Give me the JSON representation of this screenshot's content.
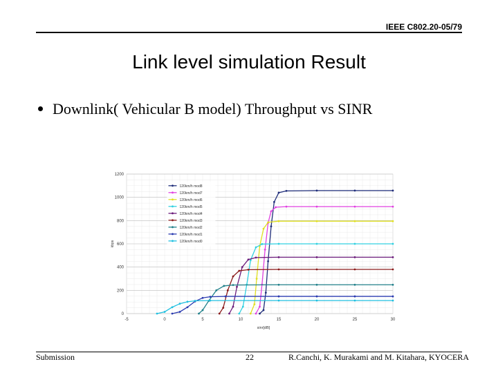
{
  "header": {
    "doc_id": "IEEE C802.20-05/79"
  },
  "slide": {
    "title": "Link level simulation Result",
    "bullet": "Downlink( Vehicular B model) Throughput vs SINR"
  },
  "footer": {
    "left": "Submission",
    "page_number": "22",
    "right": "R.Canchi, K. Murakami and M. Kitahara, KYOCERA"
  },
  "chart_data": {
    "type": "line",
    "title": "",
    "xlabel": "sinr[dB]",
    "ylabel": "kbps",
    "xlim": [
      -5,
      30
    ],
    "ylim": [
      0,
      1200
    ],
    "x_ticks": [
      "-5",
      "0",
      "5",
      "10",
      "15",
      "20",
      "25",
      "30"
    ],
    "y_ticks": [
      "0",
      "200",
      "400",
      "600",
      "800",
      "1000",
      "1200"
    ],
    "grid": true,
    "legend_position": "top-left",
    "series": [
      {
        "name": "120km/h mod8",
        "color": "#1f2d7a",
        "points": [
          [
            12.5,
            0
          ],
          [
            13,
            30
          ],
          [
            13.3,
            180
          ],
          [
            13.6,
            450
          ],
          [
            14,
            750
          ],
          [
            14.4,
            960
          ],
          [
            15,
            1040
          ],
          [
            16,
            1055
          ],
          [
            20,
            1058
          ],
          [
            25,
            1058
          ],
          [
            30,
            1058
          ]
        ]
      },
      {
        "name": "120km/h mod7",
        "color": "#e040e0",
        "points": [
          [
            12,
            0
          ],
          [
            12.5,
            60
          ],
          [
            12.8,
            250
          ],
          [
            13.2,
            550
          ],
          [
            13.6,
            780
          ],
          [
            14,
            880
          ],
          [
            14.6,
            915
          ],
          [
            16,
            920
          ],
          [
            20,
            920
          ],
          [
            25,
            920
          ],
          [
            30,
            920
          ]
        ]
      },
      {
        "name": "120km/h mod6",
        "color": "#e0e020",
        "points": [
          [
            11.3,
            0
          ],
          [
            11.8,
            80
          ],
          [
            12.1,
            300
          ],
          [
            12.5,
            580
          ],
          [
            13,
            730
          ],
          [
            13.6,
            785
          ],
          [
            15,
            795
          ],
          [
            20,
            795
          ],
          [
            25,
            795
          ],
          [
            30,
            795
          ]
        ]
      },
      {
        "name": "120km/h mod5",
        "color": "#30d0e0",
        "points": [
          [
            9.8,
            0
          ],
          [
            10.3,
            60
          ],
          [
            10.8,
            250
          ],
          [
            11.3,
            460
          ],
          [
            12,
            570
          ],
          [
            12.8,
            598
          ],
          [
            15,
            600
          ],
          [
            20,
            600
          ],
          [
            25,
            600
          ],
          [
            30,
            600
          ]
        ]
      },
      {
        "name": "120km/h mod4",
        "color": "#6a1a7a",
        "points": [
          [
            8.5,
            0
          ],
          [
            9,
            60
          ],
          [
            9.5,
            230
          ],
          [
            10.2,
            400
          ],
          [
            11,
            465
          ],
          [
            12,
            482
          ],
          [
            15,
            485
          ],
          [
            20,
            485
          ],
          [
            25,
            485
          ],
          [
            30,
            485
          ]
        ]
      },
      {
        "name": "120km/h mod3",
        "color": "#8a1a1a",
        "points": [
          [
            7.2,
            0
          ],
          [
            7.7,
            50
          ],
          [
            8.3,
            200
          ],
          [
            9,
            320
          ],
          [
            9.8,
            368
          ],
          [
            11,
            378
          ],
          [
            15,
            380
          ],
          [
            20,
            380
          ],
          [
            25,
            380
          ],
          [
            30,
            380
          ]
        ]
      },
      {
        "name": "120km/h mod2",
        "color": "#20808a",
        "points": [
          [
            4.5,
            0
          ],
          [
            5,
            30
          ],
          [
            5.8,
            110
          ],
          [
            6.8,
            200
          ],
          [
            7.8,
            238
          ],
          [
            9,
            246
          ],
          [
            15,
            248
          ],
          [
            20,
            248
          ],
          [
            25,
            248
          ],
          [
            30,
            248
          ]
        ]
      },
      {
        "name": "120km/h mod1",
        "color": "#2a3ab0",
        "points": [
          [
            1,
            0
          ],
          [
            2,
            15
          ],
          [
            3,
            55
          ],
          [
            4,
            105
          ],
          [
            5,
            135
          ],
          [
            6,
            145
          ],
          [
            8,
            148
          ],
          [
            15,
            148
          ],
          [
            20,
            148
          ],
          [
            25,
            148
          ],
          [
            30,
            148
          ]
        ]
      },
      {
        "name": "120km/h mod0",
        "color": "#20c0e0",
        "points": [
          [
            -1,
            0
          ],
          [
            0,
            15
          ],
          [
            1,
            55
          ],
          [
            2,
            85
          ],
          [
            3,
            102
          ],
          [
            4,
            110
          ],
          [
            6,
            112
          ],
          [
            15,
            112
          ],
          [
            20,
            112
          ],
          [
            25,
            112
          ],
          [
            30,
            112
          ]
        ]
      }
    ]
  }
}
